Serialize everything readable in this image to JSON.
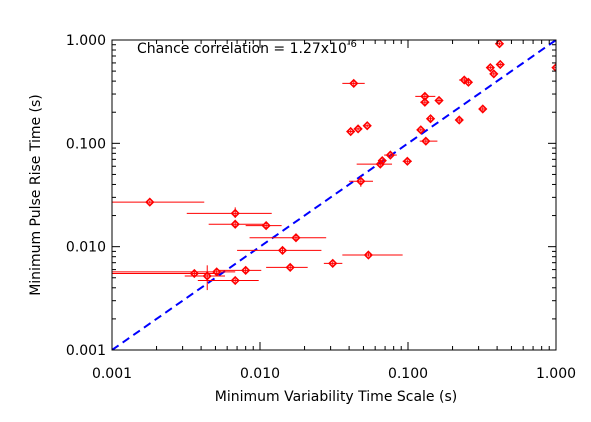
{
  "chart_data": {
    "type": "scatter",
    "xlabel": "Minimum Variability Time Scale (s)",
    "ylabel": "Minimum Pulse Rise Time (s)",
    "annotation": "Chance correlation = 1.27x10",
    "annotation_exponent": "-6",
    "xscale": "log",
    "yscale": "log",
    "xlim": [
      0.001,
      1.0
    ],
    "ylim": [
      0.001,
      1.0
    ],
    "xticks": [
      {
        "value": 0.001,
        "label": "0.001"
      },
      {
        "value": 0.01,
        "label": "0.010"
      },
      {
        "value": 0.1,
        "label": "0.100"
      },
      {
        "value": 1.0,
        "label": "1.000"
      }
    ],
    "yticks": [
      {
        "value": 0.001,
        "label": "0.001"
      },
      {
        "value": 0.01,
        "label": "0.010"
      },
      {
        "value": 0.1,
        "label": "0.100"
      },
      {
        "value": 1.0,
        "label": "1.000"
      }
    ],
    "grid": false,
    "marker_color": "#ff0000",
    "line_color": "#0000ff",
    "reference_line": {
      "style": "dashed",
      "points": [
        [
          0.001,
          0.001
        ],
        [
          1.0,
          1.0
        ]
      ]
    },
    "points": [
      {
        "x": 0.0018,
        "y": 0.027,
        "xerr": [
          0.0009,
          0.0042
        ],
        "yerr": [
          0.026,
          0.028
        ]
      },
      {
        "x": 0.0068,
        "y": 0.021,
        "xerr": [
          0.0032,
          0.012
        ],
        "yerr": [
          0.019,
          0.024
        ]
      },
      {
        "x": 0.0068,
        "y": 0.0165,
        "xerr": [
          0.0045,
          0.0105
        ],
        "yerr": [
          0.0155,
          0.0175
        ]
      },
      {
        "x": 0.011,
        "y": 0.016,
        "xerr": [
          0.008,
          0.014
        ],
        "yerr": [
          0.015,
          0.017
        ]
      },
      {
        "x": 0.0175,
        "y": 0.0122,
        "xerr": [
          0.0085,
          0.028
        ],
        "yerr": [
          0.0115,
          0.013
        ]
      },
      {
        "x": 0.0142,
        "y": 0.0092,
        "xerr": [
          0.007,
          0.026
        ],
        "yerr": [
          0.0085,
          0.01
        ]
      },
      {
        "x": 0.016,
        "y": 0.0063,
        "xerr": [
          0.011,
          0.021
        ],
        "yerr": [
          0.006,
          0.0067
        ]
      },
      {
        "x": 0.031,
        "y": 0.0069,
        "xerr": [
          0.027,
          0.036
        ],
        "yerr": [
          0.0066,
          0.0072
        ]
      },
      {
        "x": 0.054,
        "y": 0.0083,
        "xerr": [
          0.036,
          0.092
        ],
        "yerr": [
          0.008,
          0.0087
        ]
      },
      {
        "x": 0.0036,
        "y": 0.0055,
        "xerr": [
          0.001,
          0.0052
        ],
        "yerr": [
          0.0052,
          0.0058
        ]
      },
      {
        "x": 0.0044,
        "y": 0.0052,
        "xerr": [
          0.0031,
          0.0058
        ],
        "yerr": [
          0.0038,
          0.0066
        ]
      },
      {
        "x": 0.0051,
        "y": 0.0057,
        "xerr": [
          0.001,
          0.0068
        ],
        "yerr": [
          0.0054,
          0.006
        ]
      },
      {
        "x": 0.008,
        "y": 0.0059,
        "xerr": [
          0.0052,
          0.0102
        ],
        "yerr": [
          0.0056,
          0.0063
        ]
      },
      {
        "x": 0.0068,
        "y": 0.0047,
        "xerr": [
          0.0038,
          0.0098
        ],
        "yerr": [
          0.0045,
          0.0049
        ]
      },
      {
        "x": 0.043,
        "y": 0.38,
        "xerr": [
          0.036,
          0.051
        ],
        "yerr": [
          0.36,
          0.4
        ]
      },
      {
        "x": 0.041,
        "y": 0.13,
        "xerr": [
          0.0385,
          0.0435
        ],
        "yerr": [
          0.125,
          0.135
        ]
      },
      {
        "x": 0.046,
        "y": 0.138,
        "xerr": [
          0.044,
          0.048
        ],
        "yerr": [
          0.133,
          0.143
        ]
      },
      {
        "x": 0.053,
        "y": 0.148,
        "xerr": [
          0.051,
          0.055
        ],
        "yerr": [
          0.143,
          0.153
        ]
      },
      {
        "x": 0.048,
        "y": 0.043,
        "xerr": [
          0.04,
          0.058
        ],
        "yerr": [
          0.038,
          0.048
        ]
      },
      {
        "x": 0.065,
        "y": 0.063,
        "xerr": [
          0.045,
          0.078
        ],
        "yerr": [
          0.06,
          0.066
        ]
      },
      {
        "x": 0.067,
        "y": 0.068,
        "xerr": [
          0.063,
          0.071
        ],
        "yerr": [
          0.065,
          0.071
        ]
      },
      {
        "x": 0.076,
        "y": 0.077,
        "xerr": [
          0.069,
          0.084
        ],
        "yerr": [
          0.074,
          0.08
        ]
      },
      {
        "x": 0.099,
        "y": 0.067,
        "xerr": [
          0.092,
          0.106
        ],
        "yerr": [
          0.064,
          0.07
        ]
      },
      {
        "x": 0.122,
        "y": 0.135,
        "xerr": [
          0.117,
          0.127
        ],
        "yerr": [
          0.13,
          0.14
        ]
      },
      {
        "x": 0.132,
        "y": 0.105,
        "xerr": [
          0.12,
          0.158
        ],
        "yerr": [
          0.1,
          0.11
        ]
      },
      {
        "x": 0.13,
        "y": 0.285,
        "xerr": [
          0.112,
          0.153
        ],
        "yerr": [
          0.27,
          0.3
        ]
      },
      {
        "x": 0.13,
        "y": 0.25,
        "xerr": [
          0.121,
          0.139
        ],
        "yerr": [
          0.238,
          0.262
        ]
      },
      {
        "x": 0.142,
        "y": 0.173,
        "xerr": [
          0.134,
          0.15
        ],
        "yerr": [
          0.165,
          0.181
        ]
      },
      {
        "x": 0.162,
        "y": 0.26,
        "xerr": [
          0.155,
          0.169
        ],
        "yerr": [
          0.25,
          0.27
        ]
      },
      {
        "x": 0.222,
        "y": 0.168,
        "xerr": [
          0.212,
          0.232
        ],
        "yerr": [
          0.16,
          0.176
        ]
      },
      {
        "x": 0.24,
        "y": 0.41,
        "xerr": [
          0.221,
          0.259
        ],
        "yerr": [
          0.39,
          0.43
        ]
      },
      {
        "x": 0.256,
        "y": 0.39,
        "xerr": [
          0.246,
          0.266
        ],
        "yerr": [
          0.373,
          0.407
        ]
      },
      {
        "x": 0.32,
        "y": 0.215,
        "xerr": [
          0.306,
          0.334
        ],
        "yerr": [
          0.205,
          0.225
        ]
      },
      {
        "x": 0.36,
        "y": 0.54,
        "xerr": [
          0.344,
          0.376
        ],
        "yerr": [
          0.52,
          0.56
        ]
      },
      {
        "x": 0.38,
        "y": 0.47,
        "xerr": [
          0.365,
          0.395
        ],
        "yerr": [
          0.45,
          0.49
        ]
      },
      {
        "x": 0.415,
        "y": 0.92,
        "xerr": [
          0.4,
          0.43
        ],
        "yerr": [
          0.89,
          0.95
        ]
      },
      {
        "x": 0.42,
        "y": 0.58,
        "xerr": [
          0.405,
          0.435
        ],
        "yerr": [
          0.56,
          0.6
        ]
      },
      {
        "x": 1.0,
        "y": 0.54,
        "xerr": [
          0.97,
          1.0
        ],
        "yerr": [
          0.52,
          0.56
        ]
      }
    ]
  }
}
